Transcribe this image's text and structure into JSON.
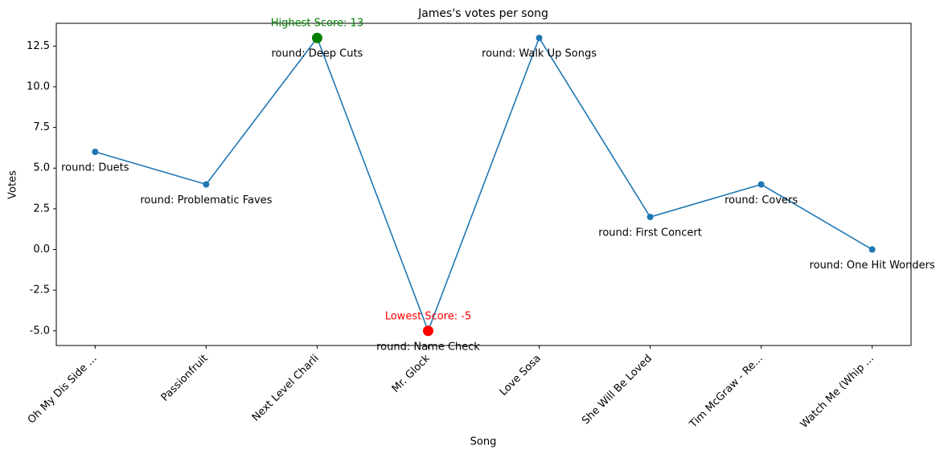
{
  "chart_data": {
    "type": "line",
    "title": "James's votes per song",
    "x_label": "Song",
    "y_label": "Votes",
    "categories": [
      "Oh My Dis Side ...",
      "Passionfruit",
      "Next Level Charli",
      "Mr. Glock",
      "Love Sosa",
      "She Will Be Loved",
      "Tim McGraw - Re...",
      "Watch Me (Whip ..."
    ],
    "series": [
      {
        "color": "#1f77b4",
        "values": [
          6,
          4,
          13,
          -5,
          13,
          2,
          4,
          0
        ]
      }
    ],
    "round_labels": [
      "round: Duets",
      "round: Problematic Faves",
      "round: Deep Cuts",
      "round: Name Check",
      "round: Walk Up Songs",
      "round: First Concert",
      "round: Covers",
      "round: One Hit Wonders"
    ],
    "max_annotation": {
      "text": "Highest Score: 13",
      "color": "#008000"
    },
    "min_annotation": {
      "text": "Lowest Score: -5",
      "color": "#ff0000"
    },
    "ylim": [
      -5.9,
      13.9
    ],
    "yticks": [
      {
        "value": -5,
        "label": "-5.0"
      },
      -2.5,
      {
        "value": 0,
        "label": "0.0"
      },
      2.5,
      {
        "value": 5,
        "label": "5.0"
      },
      7.5,
      {
        "value": 10,
        "label": "10.0"
      },
      12.5
    ]
  }
}
